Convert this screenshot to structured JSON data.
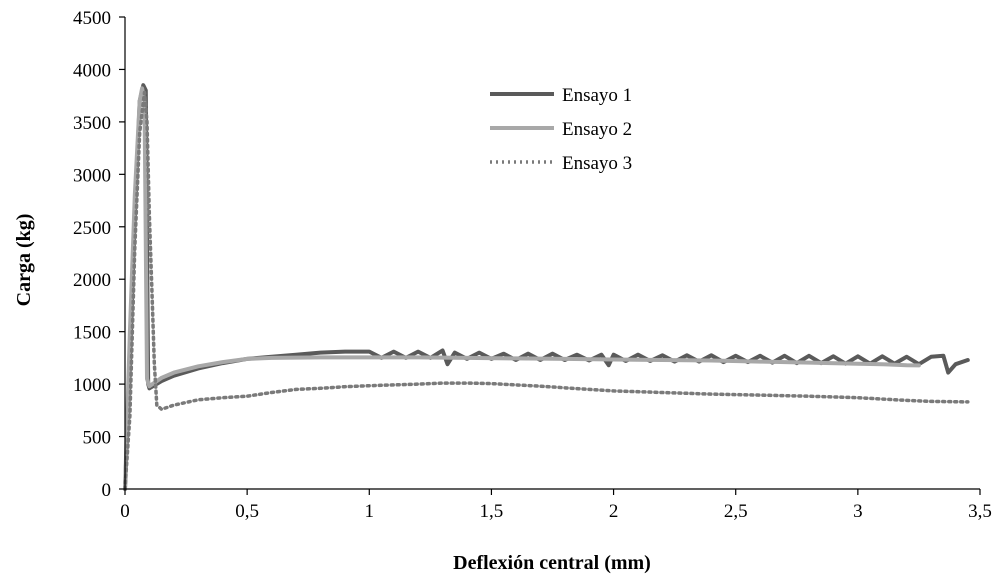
{
  "chart_data": {
    "type": "line",
    "title": "",
    "xlabel": "Deflexión central (mm)",
    "ylabel": "Carga (kg)",
    "xlim": [
      0,
      3.5
    ],
    "ylim": [
      0,
      4500
    ],
    "x_ticks": [
      {
        "v": 0,
        "label": "0"
      },
      {
        "v": 0.5,
        "label": "0,5"
      },
      {
        "v": 1,
        "label": "1"
      },
      {
        "v": 1.5,
        "label": "1,5"
      },
      {
        "v": 2,
        "label": "2"
      },
      {
        "v": 2.5,
        "label": "2,5"
      },
      {
        "v": 3,
        "label": "3"
      },
      {
        "v": 3.5,
        "label": "3,5"
      }
    ],
    "y_ticks": [
      {
        "v": 0,
        "label": "0"
      },
      {
        "v": 500,
        "label": "500"
      },
      {
        "v": 1000,
        "label": "1000"
      },
      {
        "v": 1500,
        "label": "1500"
      },
      {
        "v": 2000,
        "label": "2000"
      },
      {
        "v": 2500,
        "label": "2500"
      },
      {
        "v": 3000,
        "label": "3000"
      },
      {
        "v": 3500,
        "label": "3500"
      },
      {
        "v": 4000,
        "label": "4000"
      },
      {
        "v": 4500,
        "label": "4500"
      }
    ],
    "grid": false,
    "legend_position": "top-center",
    "series": [
      {
        "name": "Ensayo 1",
        "color": "#5a5a5a",
        "style": "solid",
        "points": [
          [
            0,
            0
          ],
          [
            0.02,
            1200
          ],
          [
            0.04,
            2600
          ],
          [
            0.06,
            3700
          ],
          [
            0.075,
            3850
          ],
          [
            0.085,
            3800
          ],
          [
            0.095,
            1000
          ],
          [
            0.1,
            960
          ],
          [
            0.15,
            1030
          ],
          [
            0.2,
            1080
          ],
          [
            0.3,
            1150
          ],
          [
            0.4,
            1200
          ],
          [
            0.5,
            1240
          ],
          [
            0.6,
            1260
          ],
          [
            0.7,
            1280
          ],
          [
            0.8,
            1300
          ],
          [
            0.9,
            1310
          ],
          [
            1.0,
            1310
          ],
          [
            1.05,
            1250
          ],
          [
            1.1,
            1310
          ],
          [
            1.15,
            1250
          ],
          [
            1.2,
            1310
          ],
          [
            1.25,
            1250
          ],
          [
            1.3,
            1320
          ],
          [
            1.32,
            1190
          ],
          [
            1.35,
            1300
          ],
          [
            1.4,
            1240
          ],
          [
            1.45,
            1300
          ],
          [
            1.5,
            1240
          ],
          [
            1.55,
            1290
          ],
          [
            1.6,
            1230
          ],
          [
            1.65,
            1290
          ],
          [
            1.7,
            1230
          ],
          [
            1.75,
            1290
          ],
          [
            1.8,
            1230
          ],
          [
            1.85,
            1280
          ],
          [
            1.9,
            1225
          ],
          [
            1.95,
            1280
          ],
          [
            1.98,
            1180
          ],
          [
            2.0,
            1280
          ],
          [
            2.05,
            1220
          ],
          [
            2.1,
            1280
          ],
          [
            2.15,
            1220
          ],
          [
            2.2,
            1275
          ],
          [
            2.25,
            1215
          ],
          [
            2.3,
            1275
          ],
          [
            2.35,
            1215
          ],
          [
            2.4,
            1275
          ],
          [
            2.45,
            1210
          ],
          [
            2.5,
            1270
          ],
          [
            2.55,
            1210
          ],
          [
            2.6,
            1270
          ],
          [
            2.65,
            1205
          ],
          [
            2.7,
            1270
          ],
          [
            2.75,
            1200
          ],
          [
            2.8,
            1270
          ],
          [
            2.85,
            1200
          ],
          [
            2.9,
            1265
          ],
          [
            2.95,
            1195
          ],
          [
            3.0,
            1265
          ],
          [
            3.05,
            1195
          ],
          [
            3.1,
            1265
          ],
          [
            3.15,
            1195
          ],
          [
            3.2,
            1260
          ],
          [
            3.25,
            1190
          ],
          [
            3.3,
            1260
          ],
          [
            3.35,
            1270
          ],
          [
            3.37,
            1110
          ],
          [
            3.4,
            1190
          ],
          [
            3.45,
            1230
          ]
        ]
      },
      {
        "name": "Ensayo 2",
        "color": "#a8a8a8",
        "style": "solid",
        "points": [
          [
            0,
            0
          ],
          [
            0.02,
            1500
          ],
          [
            0.04,
            2800
          ],
          [
            0.06,
            3700
          ],
          [
            0.07,
            3820
          ],
          [
            0.08,
            3700
          ],
          [
            0.09,
            1050
          ],
          [
            0.1,
            980
          ],
          [
            0.15,
            1060
          ],
          [
            0.2,
            1110
          ],
          [
            0.3,
            1170
          ],
          [
            0.4,
            1210
          ],
          [
            0.5,
            1240
          ],
          [
            0.6,
            1250
          ],
          [
            0.8,
            1255
          ],
          [
            1.0,
            1255
          ],
          [
            1.2,
            1255
          ],
          [
            1.4,
            1250
          ],
          [
            1.6,
            1245
          ],
          [
            1.8,
            1240
          ],
          [
            2.0,
            1235
          ],
          [
            2.2,
            1230
          ],
          [
            2.4,
            1225
          ],
          [
            2.6,
            1215
          ],
          [
            2.8,
            1205
          ],
          [
            3.0,
            1195
          ],
          [
            3.1,
            1190
          ],
          [
            3.2,
            1180
          ],
          [
            3.25,
            1178
          ]
        ]
      },
      {
        "name": "Ensayo 3",
        "color": "#7a7a7a",
        "style": "dotted",
        "points": [
          [
            0,
            0
          ],
          [
            0.02,
            700
          ],
          [
            0.04,
            2300
          ],
          [
            0.06,
            3400
          ],
          [
            0.08,
            3780
          ],
          [
            0.09,
            3500
          ],
          [
            0.1,
            2600
          ],
          [
            0.11,
            1900
          ],
          [
            0.12,
            1200
          ],
          [
            0.13,
            800
          ],
          [
            0.15,
            760
          ],
          [
            0.2,
            800
          ],
          [
            0.3,
            850
          ],
          [
            0.4,
            870
          ],
          [
            0.5,
            885
          ],
          [
            0.6,
            920
          ],
          [
            0.7,
            950
          ],
          [
            0.8,
            960
          ],
          [
            0.9,
            975
          ],
          [
            1.0,
            985
          ],
          [
            1.2,
            1000
          ],
          [
            1.3,
            1010
          ],
          [
            1.4,
            1010
          ],
          [
            1.5,
            1005
          ],
          [
            1.7,
            980
          ],
          [
            1.9,
            950
          ],
          [
            2.0,
            935
          ],
          [
            2.2,
            920
          ],
          [
            2.4,
            905
          ],
          [
            2.6,
            895
          ],
          [
            2.8,
            885
          ],
          [
            3.0,
            870
          ],
          [
            3.2,
            845
          ],
          [
            3.3,
            835
          ],
          [
            3.45,
            830
          ]
        ]
      }
    ]
  }
}
